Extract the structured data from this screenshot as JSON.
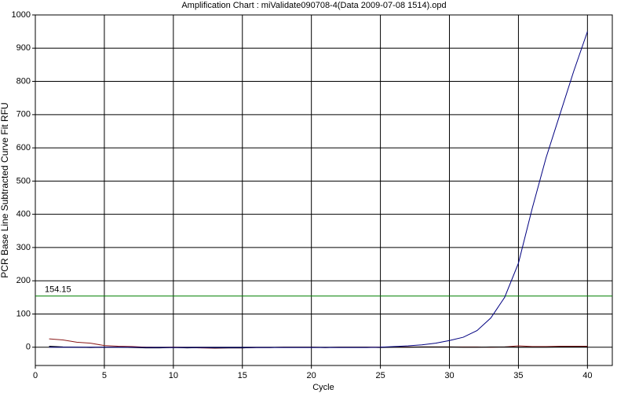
{
  "chart_data": {
    "type": "line",
    "title": "Amplification Chart : miValidate090708-4(Data 2009-07-08 1514).opd",
    "x_label": "Cycle",
    "y_label": "PCR Base Line Subtracted Curve Fit RFU",
    "x": [
      1,
      2,
      3,
      4,
      5,
      6,
      7,
      8,
      9,
      10,
      11,
      12,
      13,
      14,
      15,
      16,
      17,
      18,
      19,
      20,
      21,
      22,
      23,
      24,
      25,
      26,
      27,
      28,
      29,
      30,
      31,
      32,
      33,
      34,
      35,
      36,
      37,
      38,
      39,
      40
    ],
    "series": [
      {
        "color": "#8b1a1a",
        "values": [
          25,
          22,
          15,
          12,
          5,
          3,
          2,
          0,
          -1,
          0,
          -1,
          -2,
          -3,
          -2,
          -2,
          -1,
          -1,
          0,
          0,
          0,
          -1,
          0,
          0,
          0,
          0,
          1,
          1,
          1,
          1,
          1,
          1,
          1,
          0,
          1,
          4,
          2,
          2,
          3,
          3,
          3
        ]
      },
      {
        "color": "#000000",
        "values": [
          3,
          1,
          0,
          -1,
          0,
          0,
          -1,
          -2,
          -2,
          -1,
          -2,
          -1,
          -2,
          -2,
          -2,
          -1,
          -1,
          0,
          0,
          0,
          -1,
          0,
          0,
          0,
          -1,
          0,
          0,
          1,
          1,
          1,
          0,
          0,
          1,
          1,
          0,
          0,
          0,
          1,
          1,
          1
        ]
      },
      {
        "color": "#000080",
        "values": [
          0,
          0,
          0,
          0,
          0,
          0,
          0,
          -1,
          -1,
          -1,
          -1,
          -1,
          -1,
          -1,
          -1,
          -1,
          -1,
          -1,
          -1,
          -1,
          -1,
          -1,
          -1,
          -1,
          0,
          2,
          4,
          7,
          12,
          20,
          30,
          50,
          88,
          150,
          253,
          418,
          570,
          700,
          830,
          950
        ]
      }
    ],
    "threshold": {
      "value": 154.15,
      "label": "154.15",
      "color": "#008000"
    },
    "xlim": [
      0,
      41.8
    ],
    "ylim": [
      -55,
      1000
    ],
    "xticks": [
      0,
      5,
      10,
      15,
      20,
      25,
      30,
      35,
      40
    ],
    "yticks": [
      0,
      100,
      200,
      300,
      400,
      500,
      600,
      700,
      800,
      900,
      1000
    ],
    "grid": true
  }
}
